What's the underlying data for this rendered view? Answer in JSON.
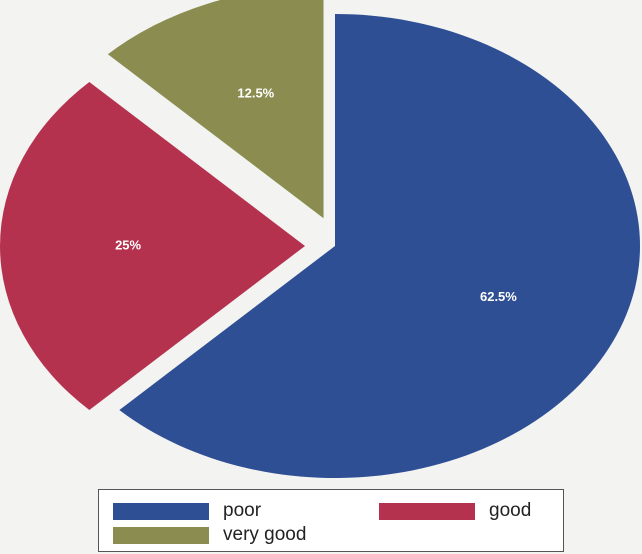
{
  "chart_data": {
    "type": "pie",
    "title": "",
    "slices": [
      {
        "label": "poor",
        "value": 62.5,
        "value_label": "62.5%",
        "color": "#2f4f95"
      },
      {
        "label": "good",
        "value": 25,
        "value_label": "25%",
        "color": "#b5324f"
      },
      {
        "label": "very good",
        "value": 12.5,
        "value_label": "12.5%",
        "color": "#8a8d4f"
      }
    ],
    "legend_position": "bottom",
    "exploded": true
  }
}
